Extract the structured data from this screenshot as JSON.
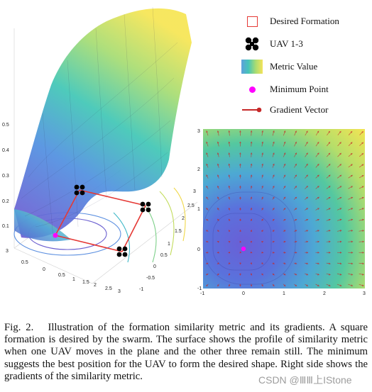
{
  "legend": {
    "items": [
      {
        "label": "Desired Formation",
        "icon": "red-square-icon"
      },
      {
        "label": "UAV 1-3",
        "icon": "quadrotor-icon"
      },
      {
        "label": "Metric Value",
        "icon": "colormap-swatch-icon"
      },
      {
        "label": "Minimum Point",
        "icon": "magenta-dot-icon"
      },
      {
        "label": "Gradient Vector",
        "icon": "red-arrow-icon"
      }
    ]
  },
  "plot3d": {
    "z_ticks": [
      "0.5",
      "0.4",
      "0.3",
      "0.2",
      "0.1"
    ],
    "x_ticks": [
      "3",
      "2.5",
      "2",
      "1.5",
      "1",
      "0.5",
      "0",
      "-0.5",
      "-1"
    ],
    "y_ticks": [
      "-1",
      "-0.5",
      "0",
      "0.5",
      "1",
      "1.5",
      "2",
      "2.5",
      "3"
    ]
  },
  "field2d": {
    "x_ticks": [
      "-1",
      "0",
      "1",
      "2",
      "3"
    ],
    "y_ticks": [
      "3",
      "2",
      "1",
      "0",
      "-1"
    ]
  },
  "colors": {
    "formation": "#e53935",
    "minimum": "#ff00ff",
    "gradient": "#c62828",
    "colormap": [
      "#5b6bd6",
      "#4aa0e0",
      "#3ec7b6",
      "#9ddc7a",
      "#f4e65a"
    ]
  },
  "caption": {
    "lead": "Fig. 2.",
    "text": "Illustration of the formation similarity metric and its gradients. A square formation is desired by the swarm. The surface shows the profile of similarity metric when one UAV moves in the plane and the other three remain still. The minimum suggests the best position for the UAV to form the desired shape. Right side shows the gradients of the similarity metric."
  },
  "watermark": "CSDN @ⅢⅢ上IStone"
}
